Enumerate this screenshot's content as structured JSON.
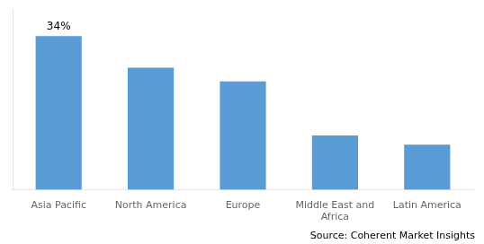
{
  "chart_data": {
    "type": "bar",
    "categories": [
      "Asia Pacific",
      "North America",
      "Europe",
      "Middle East and\nAfrica",
      "Latin America"
    ],
    "values": [
      34,
      27,
      24,
      12,
      10
    ],
    "color": "#5B9BD5",
    "ylim": [
      0,
      40
    ],
    "grid": false,
    "tick_labels": "x",
    "data_labels": false,
    "annotations": [
      {
        "text": "34%",
        "x": "Asia Pacific",
        "y": 34
      },
      {
        "text": "Source: Coherent Market Insights"
      }
    ]
  }
}
